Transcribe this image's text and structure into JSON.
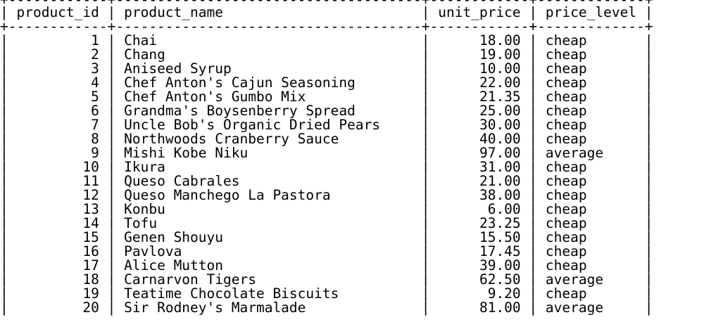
{
  "columns": [
    {
      "key": "product_id",
      "label": "product_id",
      "align": "right"
    },
    {
      "key": "product_name",
      "label": "product_name",
      "align": "left"
    },
    {
      "key": "unit_price",
      "label": "unit_price",
      "align": "right"
    },
    {
      "key": "price_level",
      "label": "price_level",
      "align": "left"
    }
  ],
  "rows": [
    {
      "product_id": "1",
      "product_name": "Chai",
      "unit_price": "18.00",
      "price_level": "cheap"
    },
    {
      "product_id": "2",
      "product_name": "Chang",
      "unit_price": "19.00",
      "price_level": "cheap"
    },
    {
      "product_id": "3",
      "product_name": "Aniseed Syrup",
      "unit_price": "10.00",
      "price_level": "cheap"
    },
    {
      "product_id": "4",
      "product_name": "Chef Anton's Cajun Seasoning",
      "unit_price": "22.00",
      "price_level": "cheap"
    },
    {
      "product_id": "5",
      "product_name": "Chef Anton's Gumbo Mix",
      "unit_price": "21.35",
      "price_level": "cheap"
    },
    {
      "product_id": "6",
      "product_name": "Grandma's Boysenberry Spread",
      "unit_price": "25.00",
      "price_level": "cheap"
    },
    {
      "product_id": "7",
      "product_name": "Uncle Bob's Organic Dried Pears",
      "unit_price": "30.00",
      "price_level": "cheap"
    },
    {
      "product_id": "8",
      "product_name": "Northwoods Cranberry Sauce",
      "unit_price": "40.00",
      "price_level": "cheap"
    },
    {
      "product_id": "9",
      "product_name": "Mishi Kobe Niku",
      "unit_price": "97.00",
      "price_level": "average"
    },
    {
      "product_id": "10",
      "product_name": "Ikura",
      "unit_price": "31.00",
      "price_level": "cheap"
    },
    {
      "product_id": "11",
      "product_name": "Queso Cabrales",
      "unit_price": "21.00",
      "price_level": "cheap"
    },
    {
      "product_id": "12",
      "product_name": "Queso Manchego La Pastora",
      "unit_price": "38.00",
      "price_level": "cheap"
    },
    {
      "product_id": "13",
      "product_name": "Konbu",
      "unit_price": "6.00",
      "price_level": "cheap"
    },
    {
      "product_id": "14",
      "product_name": "Tofu",
      "unit_price": "23.25",
      "price_level": "cheap"
    },
    {
      "product_id": "15",
      "product_name": "Genen Shouyu",
      "unit_price": "15.50",
      "price_level": "cheap"
    },
    {
      "product_id": "16",
      "product_name": "Pavlova",
      "unit_price": "17.45",
      "price_level": "cheap"
    },
    {
      "product_id": "17",
      "product_name": "Alice Mutton",
      "unit_price": "39.00",
      "price_level": "cheap"
    },
    {
      "product_id": "18",
      "product_name": "Carnarvon Tigers",
      "unit_price": "62.50",
      "price_level": "average"
    },
    {
      "product_id": "19",
      "product_name": "Teatime Chocolate Biscuits",
      "unit_price": "9.20",
      "price_level": "cheap"
    },
    {
      "product_id": "20",
      "product_name": "Sir Rodney's Marmalade",
      "unit_price": "81.00",
      "price_level": "average"
    }
  ],
  "colors": {
    "background": "#ffffff",
    "text": "#000000"
  }
}
